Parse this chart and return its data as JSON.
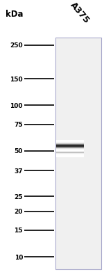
{
  "title": "kDa",
  "lane_label": "A375",
  "marker_labels": [
    "250",
    "150",
    "100",
    "75",
    "50",
    "37",
    "25",
    "20",
    "15",
    "10"
  ],
  "marker_kda": [
    250,
    150,
    100,
    75,
    50,
    37,
    25,
    20,
    15,
    10
  ],
  "band_kda": 54,
  "bg_color": "#f0f0f0",
  "marker_line_color": "#111111",
  "border_color": "#aaaacc",
  "tick_label_fontsize": 6.5,
  "lane_label_fontsize": 9,
  "kda_label_fontsize": 8.5,
  "fig_width": 1.5,
  "fig_height": 4.02,
  "dpi": 100
}
